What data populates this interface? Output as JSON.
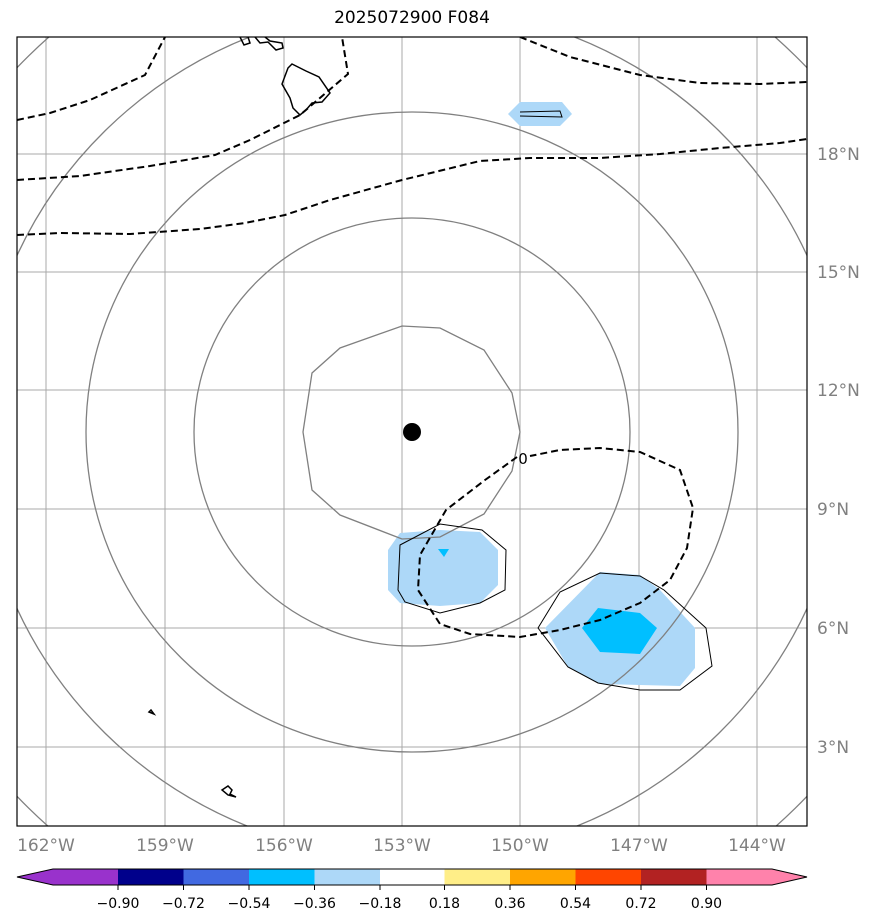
{
  "title": "2025072900 F084",
  "map": {
    "lon_range": [
      -163,
      -142.3
    ],
    "lat_range": [
      1,
      21
    ],
    "lon_ticks": [
      -162,
      -159,
      -156,
      -153,
      -150,
      -147,
      -144
    ],
    "lat_ticks": [
      3,
      6,
      9,
      12,
      15,
      18
    ],
    "lon_labels": [
      "162°W",
      "159°W",
      "156°W",
      "153°W",
      "150°W",
      "147°W",
      "144°W"
    ],
    "lat_labels": [
      "3°N",
      "6°N",
      "9°N",
      "12°N",
      "15°N",
      "18°N"
    ],
    "grid_color": "#a9a9a9",
    "tick_color": "#808080",
    "storm_center": {
      "lon": -152.8,
      "lat": 10.95
    },
    "range_rings_color": "#808080",
    "contour_label": "0"
  },
  "colorbar": {
    "ticks": [
      "−0.90",
      "−0.72",
      "−0.54",
      "−0.36",
      "−0.18",
      "0.18",
      "0.36",
      "0.54",
      "0.72",
      "0.90"
    ],
    "colors": [
      "#9932cc",
      "#00008b",
      "#4169e1",
      "#00bfff",
      "#add8f8",
      "#ffffff",
      "#ffee88",
      "#ffa500",
      "#ff4500",
      "#b22222",
      "#ff82ab"
    ]
  }
}
